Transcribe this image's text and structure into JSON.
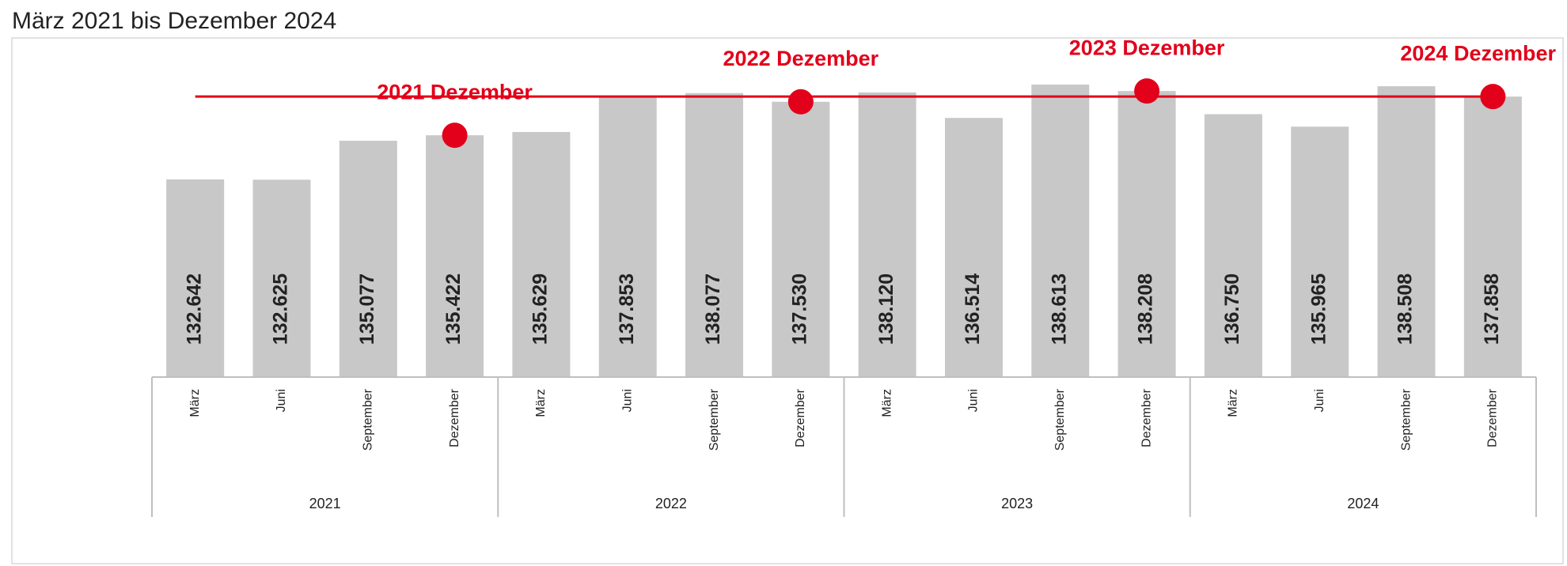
{
  "chart_data": {
    "type": "bar",
    "title": "März 2021 bis Dezember 2024",
    "categories": [
      "März",
      "Juni",
      "September",
      "Dezember",
      "März",
      "Juni",
      "September",
      "Dezember",
      "März",
      "Juni",
      "September",
      "Dezember",
      "März",
      "Juni",
      "September",
      "Dezember"
    ],
    "groups": [
      "2021",
      "2022",
      "2023",
      "2024"
    ],
    "values": [
      132642,
      132625,
      135077,
      135422,
      135629,
      137853,
      138077,
      137530,
      138120,
      136514,
      138613,
      138208,
      136750,
      135965,
      138508,
      137858
    ],
    "value_labels": [
      "132.642",
      "132.625",
      "135.077",
      "135.422",
      "135.629",
      "137.853",
      "138.077",
      "137.530",
      "138.120",
      "136.514",
      "138.613",
      "138.208",
      "136.750",
      "135.965",
      "138.508",
      "137.858"
    ],
    "color": "#c8c8c8",
    "ylim": [
      120200,
      141500
    ],
    "highlight": {
      "color": "#e2001a",
      "values": [
        null,
        null,
        null,
        135422,
        null,
        null,
        null,
        137530,
        null,
        null,
        null,
        138208,
        null,
        null,
        null,
        137858
      ],
      "labels": [
        null,
        null,
        null,
        "2021 Dezember",
        null,
        null,
        null,
        "2022 Dezember",
        null,
        null,
        null,
        "2023 Dezember",
        null,
        null,
        null,
        "2024 Dezember"
      ]
    },
    "reference_line": {
      "value": 137858,
      "color": "#e2001a"
    }
  }
}
